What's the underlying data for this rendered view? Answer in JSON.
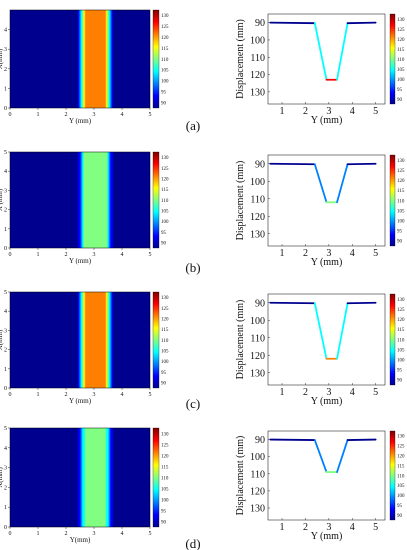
{
  "colors": {
    "scale": [
      "#00008f",
      "#0000ff",
      "#0080ff",
      "#00ffff",
      "#80ff80",
      "#ffff00",
      "#ff8000",
      "#ff0000",
      "#800000"
    ],
    "background": "#ffffff",
    "axis": "#000000"
  },
  "colorbar_ticks": [
    "130",
    "125",
    "120",
    "115",
    "110",
    "105",
    "100",
    "95",
    "90"
  ],
  "chart_data": [
    {
      "type": "heatmap",
      "panel": "(a)",
      "xlabel": "Y (mm)",
      "ylabel": "X(mm)",
      "xticks": [
        "0",
        "1",
        "2",
        "3",
        "4",
        "5"
      ],
      "yticks": [
        "0",
        "1",
        "2",
        "3",
        "4"
      ],
      "xlim": [
        0,
        5
      ],
      "ylim": [
        0,
        5
      ],
      "profile_y": [
        0,
        2.4,
        2.55,
        2.7,
        3.4,
        3.55,
        3.7,
        5
      ],
      "profile_value": [
        90,
        90,
        106,
        122,
        122,
        106,
        90,
        90
      ],
      "colorbar": {
        "min": 90,
        "max": 130
      }
    },
    {
      "type": "line",
      "panel": "(a)",
      "xlabel": "Y (mm)",
      "ylabel": "Displacement (mm)",
      "xticks": [
        "1",
        "2",
        "3",
        "4",
        "5"
      ],
      "yticks": [
        "90",
        "100",
        "110",
        "120",
        "130"
      ],
      "xlim": [
        0.4,
        5.4
      ],
      "ylim": [
        85,
        137
      ],
      "y_inverted": true,
      "x": [
        0.5,
        2.4,
        2.9,
        3.35,
        3.8,
        5
      ],
      "y": [
        90,
        90.3,
        123,
        123,
        90.3,
        90
      ],
      "colorbar": {
        "min": 90,
        "max": 130
      }
    },
    {
      "type": "heatmap",
      "panel": "(b)",
      "xlabel": "Y (mm)",
      "ylabel": "X (mm)",
      "xticks": [
        "0",
        "1",
        "2",
        "3",
        "4",
        "5"
      ],
      "yticks": [
        "0",
        "1",
        "2",
        "3",
        "4",
        "5"
      ],
      "xlim": [
        0,
        5
      ],
      "ylim": [
        0,
        5
      ],
      "profile_y": [
        0,
        2.4,
        2.55,
        2.7,
        3.4,
        3.55,
        3.7,
        5
      ],
      "profile_value": [
        90,
        90,
        101,
        112,
        112,
        101,
        90,
        90
      ],
      "colorbar": {
        "min": 90,
        "max": 130
      }
    },
    {
      "type": "line",
      "panel": "(b)",
      "xlabel": "Y (mm)",
      "ylabel": "Displacement (mm)",
      "xticks": [
        "1",
        "2",
        "3",
        "4",
        "5"
      ],
      "yticks": [
        "90",
        "100",
        "110",
        "120",
        "130"
      ],
      "xlim": [
        0.4,
        5.4
      ],
      "ylim": [
        85,
        137
      ],
      "y_inverted": true,
      "x": [
        0.5,
        2.4,
        2.9,
        3.35,
        3.8,
        5
      ],
      "y": [
        90,
        90.3,
        112,
        112,
        90.3,
        90
      ],
      "colorbar": {
        "min": 90,
        "max": 130
      }
    },
    {
      "type": "heatmap",
      "panel": "(c)",
      "xlabel": "Y (mm)",
      "ylabel": "X(mm)",
      "xticks": [
        "0",
        "1",
        "2",
        "3",
        "4",
        "5"
      ],
      "yticks": [
        "0",
        "1",
        "2",
        "3",
        "4",
        "5"
      ],
      "xlim": [
        0,
        5
      ],
      "ylim": [
        0,
        5
      ],
      "profile_y": [
        0,
        2.4,
        2.55,
        2.7,
        3.4,
        3.55,
        3.7,
        5
      ],
      "profile_value": [
        90,
        90,
        106,
        122,
        122,
        106,
        90,
        90
      ],
      "colorbar": {
        "min": 90,
        "max": 130
      }
    },
    {
      "type": "line",
      "panel": "(c)",
      "xlabel": "Y (mm)",
      "ylabel": "Displacement (mm)",
      "xticks": [
        "1",
        "2",
        "3",
        "4",
        "5"
      ],
      "yticks": [
        "90",
        "100",
        "110",
        "120",
        "130"
      ],
      "xlim": [
        0.4,
        5.4
      ],
      "ylim": [
        85,
        137
      ],
      "y_inverted": true,
      "x": [
        0.5,
        2.4,
        2.9,
        3.35,
        3.8,
        5
      ],
      "y": [
        90,
        90.3,
        122,
        122,
        90.3,
        90
      ],
      "colorbar": {
        "min": 90,
        "max": 130
      }
    },
    {
      "type": "heatmap",
      "panel": "(d)",
      "xlabel": "Y(mm)",
      "ylabel": "X(mm)",
      "xticks": [
        "0",
        "1",
        "2",
        "3",
        "4",
        "5"
      ],
      "yticks": [
        "0",
        "1",
        "2",
        "3",
        "4",
        "5"
      ],
      "xlim": [
        0,
        5
      ],
      "ylim": [
        0,
        5
      ],
      "profile_y": [
        0,
        2.4,
        2.55,
        2.7,
        3.4,
        3.55,
        3.7,
        5
      ],
      "profile_value": [
        90,
        90,
        99.5,
        109,
        109,
        99.5,
        90,
        90
      ],
      "colorbar": {
        "min": 90,
        "max": 130
      }
    },
    {
      "type": "line",
      "panel": "(d)",
      "xlabel": "Y (mm)",
      "ylabel": "Displacement (mm)",
      "xticks": [
        "1",
        "2",
        "3",
        "4",
        "5"
      ],
      "yticks": [
        "90",
        "100",
        "110",
        "120",
        "130"
      ],
      "xlim": [
        0.4,
        5.4
      ],
      "ylim": [
        85,
        137
      ],
      "y_inverted": true,
      "x": [
        0.5,
        2.4,
        2.9,
        3.35,
        3.8,
        5
      ],
      "y": [
        90,
        90.3,
        109,
        109,
        90.3,
        90
      ],
      "colorbar": {
        "min": 90,
        "max": 130
      }
    }
  ]
}
